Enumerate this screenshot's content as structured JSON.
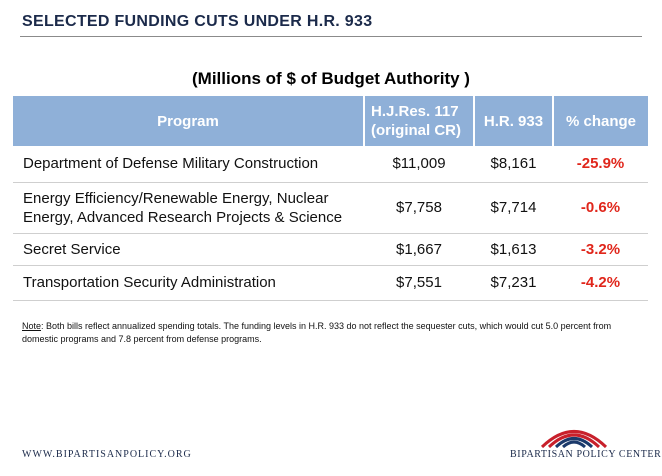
{
  "header": {
    "title": "SELECTED FUNDING CUTS UNDER H.R. 933",
    "subtitle": "(Millions of $ of Budget Authority )"
  },
  "table": {
    "columns": {
      "program": "Program",
      "hjres_line1": "H.J.Res. 117",
      "hjres_line2": "(original CR)",
      "hr933": "H.R. 933",
      "change": "% change"
    },
    "rows": [
      {
        "program_line1": "Department of Defense Military Construction",
        "program_line2": "",
        "hjres": "$11,009",
        "hr933": "$8,161",
        "change": "-25.9%"
      },
      {
        "program_line1": "Energy Efficiency/Renewable Energy, Nuclear",
        "program_line2": "Energy, Advanced Research Projects & Science",
        "hjres": "$7,758",
        "hr933": "$7,714",
        "change": "-0.6%"
      },
      {
        "program_line1": "Secret Service",
        "program_line2": "",
        "hjres": "$1,667",
        "hr933": "$1,613",
        "change": "-3.2%"
      },
      {
        "program_line1": "Transportation Security Administration",
        "program_line2": "",
        "hjres": "$7,551",
        "hr933": "$7,231",
        "change": "-4.2%"
      }
    ]
  },
  "note": {
    "label": "Note",
    "text": ": Both bills reflect annualized spending totals. The funding levels in H.R. 933 do not reflect the sequester cuts, which would cut 5.0 percent from domestic programs and 7.8 percent from defense programs."
  },
  "footer": {
    "url": "WWW.BIPARTISANPOLICY.ORG",
    "logo_text": "BIPARTISAN POLICY CENTER"
  },
  "colors": {
    "header_fill": "#8fb0d8",
    "negative_change": "#e0261b",
    "logo_red": "#c8202b",
    "logo_blue": "#1b3a6b"
  },
  "icons": {
    "logo": "bipartisan-policy-center-logo-icon"
  }
}
